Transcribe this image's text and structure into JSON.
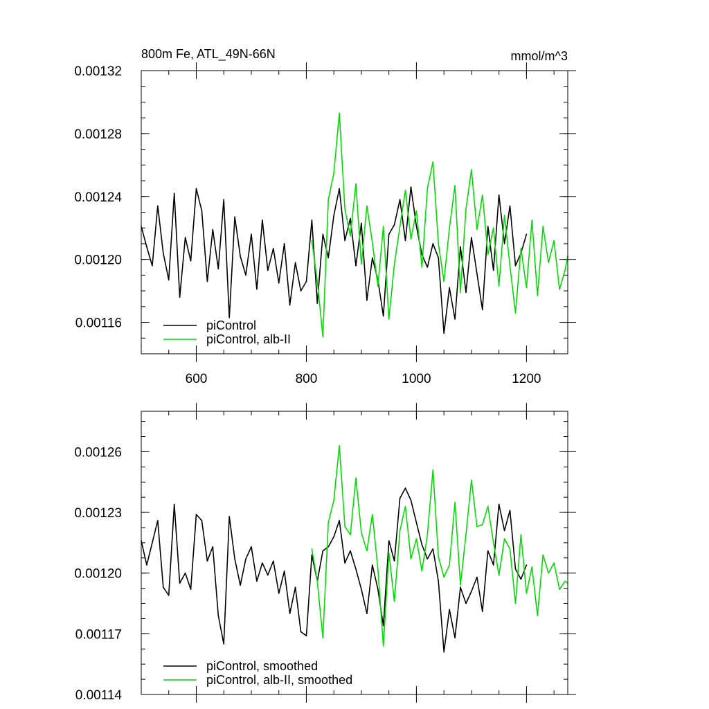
{
  "chart_data": [
    {
      "type": "line",
      "title": "800m Fe, ATL_49N-66N",
      "units": "mmol/m^3",
      "xlim": [
        500,
        1275
      ],
      "ylim": [
        0.00114,
        0.00132
      ],
      "xticks": [
        600,
        800,
        1000,
        1200
      ],
      "xtick_labels": [
        "600",
        "800",
        "1000",
        "1200"
      ],
      "yticks": [
        0.00116,
        0.0012,
        0.00124,
        0.00128,
        0.00132
      ],
      "ytick_labels": [
        "0.00116",
        "0.00120",
        "0.00124",
        "0.00128",
        "0.00132"
      ],
      "legend": "bottom-left",
      "series": [
        {
          "name": "piControl",
          "color": "#000000",
          "x": [
            500,
            510,
            520,
            530,
            540,
            550,
            560,
            570,
            580,
            590,
            600,
            610,
            620,
            630,
            640,
            650,
            660,
            670,
            680,
            690,
            700,
            710,
            720,
            730,
            740,
            750,
            760,
            770,
            780,
            790,
            800,
            810,
            820,
            830,
            840,
            850,
            860,
            870,
            880,
            890,
            900,
            910,
            920,
            930,
            940,
            950,
            960,
            970,
            980,
            990,
            1000,
            1010,
            1020,
            1030,
            1040,
            1050,
            1060,
            1070,
            1080,
            1090,
            1100,
            1110,
            1120,
            1130,
            1140,
            1150,
            1160,
            1170,
            1180,
            1190,
            1200
          ],
          "y": [
            0.001221,
            0.001208,
            0.001196,
            0.001234,
            0.001204,
            0.001187,
            0.001242,
            0.001176,
            0.001214,
            0.001199,
            0.001245,
            0.001231,
            0.001186,
            0.001219,
            0.001194,
            0.001238,
            0.001163,
            0.001227,
            0.001202,
            0.00119,
            0.001216,
            0.001181,
            0.001225,
            0.001193,
            0.001207,
            0.001185,
            0.00121,
            0.001171,
            0.001198,
            0.00118,
            0.001186,
            0.001225,
            0.001172,
            0.001216,
            0.001201,
            0.001228,
            0.001245,
            0.001212,
            0.001226,
            0.001196,
            0.001223,
            0.001174,
            0.001201,
            0.001187,
            0.001164,
            0.001216,
            0.001222,
            0.001238,
            0.001212,
            0.001246,
            0.001221,
            0.001203,
            0.001195,
            0.00121,
            0.001201,
            0.001153,
            0.001182,
            0.001162,
            0.001208,
            0.001179,
            0.001214,
            0.001191,
            0.001168,
            0.001221,
            0.001193,
            0.001241,
            0.00121,
            0.001234,
            0.001196,
            0.001204,
            0.001216
          ]
        },
        {
          "name": "piControl, alb-II",
          "color": "#00dd00",
          "x": [
            810,
            820,
            830,
            840,
            850,
            860,
            870,
            880,
            890,
            900,
            910,
            920,
            930,
            940,
            950,
            960,
            970,
            980,
            990,
            1000,
            1010,
            1020,
            1030,
            1040,
            1050,
            1060,
            1070,
            1080,
            1090,
            1100,
            1110,
            1120,
            1130,
            1140,
            1150,
            1160,
            1170,
            1180,
            1190,
            1200,
            1210,
            1220,
            1230,
            1240,
            1250,
            1260,
            1270,
            1275
          ],
          "y": [
            0.001212,
            0.001186,
            0.001151,
            0.001238,
            0.001255,
            0.001293,
            0.001232,
            0.001215,
            0.001248,
            0.001197,
            0.001234,
            0.001211,
            0.001183,
            0.001221,
            0.001162,
            0.001197,
            0.001221,
            0.001244,
            0.001213,
            0.001231,
            0.001195,
            0.001245,
            0.001262,
            0.00121,
            0.001186,
            0.00122,
            0.001247,
            0.001179,
            0.001232,
            0.001257,
            0.001219,
            0.001241,
            0.001203,
            0.00122,
            0.001183,
            0.001228,
            0.001196,
            0.001166,
            0.001207,
            0.001182,
            0.001225,
            0.001177,
            0.001221,
            0.001198,
            0.001212,
            0.001181,
            0.001193,
            0.001202
          ]
        }
      ]
    },
    {
      "type": "line",
      "xlim": [
        500,
        1275
      ],
      "ylim": [
        0.00114,
        0.00128
      ],
      "xticks": [
        600,
        800,
        1000,
        1200
      ],
      "yticks": [
        0.00114,
        0.00117,
        0.0012,
        0.00123,
        0.00126
      ],
      "ytick_labels": [
        "0.00114",
        "0.00117",
        "0.00120",
        "0.00123",
        "0.00126"
      ],
      "legend": "bottom-left",
      "series": [
        {
          "name": "piControl, smoothed",
          "color": "#000000",
          "x": [
            500,
            510,
            520,
            530,
            540,
            550,
            560,
            570,
            580,
            590,
            600,
            610,
            620,
            630,
            640,
            650,
            660,
            670,
            680,
            690,
            700,
            710,
            720,
            730,
            740,
            750,
            760,
            770,
            780,
            790,
            800,
            810,
            820,
            830,
            840,
            850,
            860,
            870,
            880,
            890,
            900,
            910,
            920,
            930,
            940,
            950,
            960,
            970,
            980,
            990,
            1000,
            1010,
            1020,
            1030,
            1040,
            1050,
            1060,
            1070,
            1080,
            1090,
            1100,
            1110,
            1120,
            1130,
            1140,
            1150,
            1160,
            1170,
            1180,
            1190,
            1200
          ],
          "y": [
            0.001216,
            0.001204,
            0.001215,
            0.001226,
            0.001193,
            0.001189,
            0.001234,
            0.001195,
            0.0012,
            0.001192,
            0.001229,
            0.001226,
            0.001206,
            0.001213,
            0.001179,
            0.001165,
            0.001228,
            0.001207,
            0.001194,
            0.001207,
            0.001213,
            0.001196,
            0.001205,
            0.001199,
            0.001206,
            0.00119,
            0.001201,
            0.00118,
            0.001193,
            0.001171,
            0.001169,
            0.001209,
            0.001196,
            0.001211,
            0.001213,
            0.001218,
            0.001226,
            0.001205,
            0.001211,
            0.001202,
            0.001192,
            0.00118,
            0.001204,
            0.001192,
            0.001174,
            0.001216,
            0.001206,
            0.001237,
            0.001242,
            0.001236,
            0.001225,
            0.001214,
            0.001207,
            0.001212,
            0.001196,
            0.001161,
            0.001182,
            0.001168,
            0.001193,
            0.001185,
            0.001191,
            0.001198,
            0.001181,
            0.001211,
            0.001204,
            0.001234,
            0.001221,
            0.001231,
            0.001202,
            0.001197,
            0.001204
          ]
        },
        {
          "name": "piControl, alb-II, smoothed",
          "color": "#00dd00",
          "x": [
            810,
            820,
            830,
            840,
            850,
            860,
            870,
            880,
            890,
            900,
            910,
            920,
            930,
            940,
            950,
            960,
            970,
            980,
            990,
            1000,
            1010,
            1020,
            1030,
            1040,
            1050,
            1060,
            1070,
            1080,
            1090,
            1100,
            1110,
            1120,
            1130,
            1140,
            1150,
            1160,
            1170,
            1180,
            1190,
            1200,
            1210,
            1220,
            1230,
            1240,
            1250,
            1260,
            1270,
            1275
          ],
          "y": [
            0.001212,
            0.001196,
            0.001168,
            0.001225,
            0.001236,
            0.001263,
            0.001223,
            0.001219,
            0.001247,
            0.00122,
            0.001211,
            0.001229,
            0.001202,
            0.001164,
            0.00121,
            0.001186,
            0.001221,
            0.001233,
            0.001207,
            0.001217,
            0.001201,
            0.001219,
            0.001251,
            0.001208,
            0.001198,
            0.001204,
            0.001235,
            0.001194,
            0.001219,
            0.001246,
            0.001223,
            0.001224,
            0.001233,
            0.001215,
            0.001199,
            0.001217,
            0.001212,
            0.001185,
            0.001219,
            0.00119,
            0.001203,
            0.001179,
            0.001209,
            0.0012,
            0.001205,
            0.001192,
            0.001196,
            0.001195
          ]
        }
      ]
    }
  ]
}
